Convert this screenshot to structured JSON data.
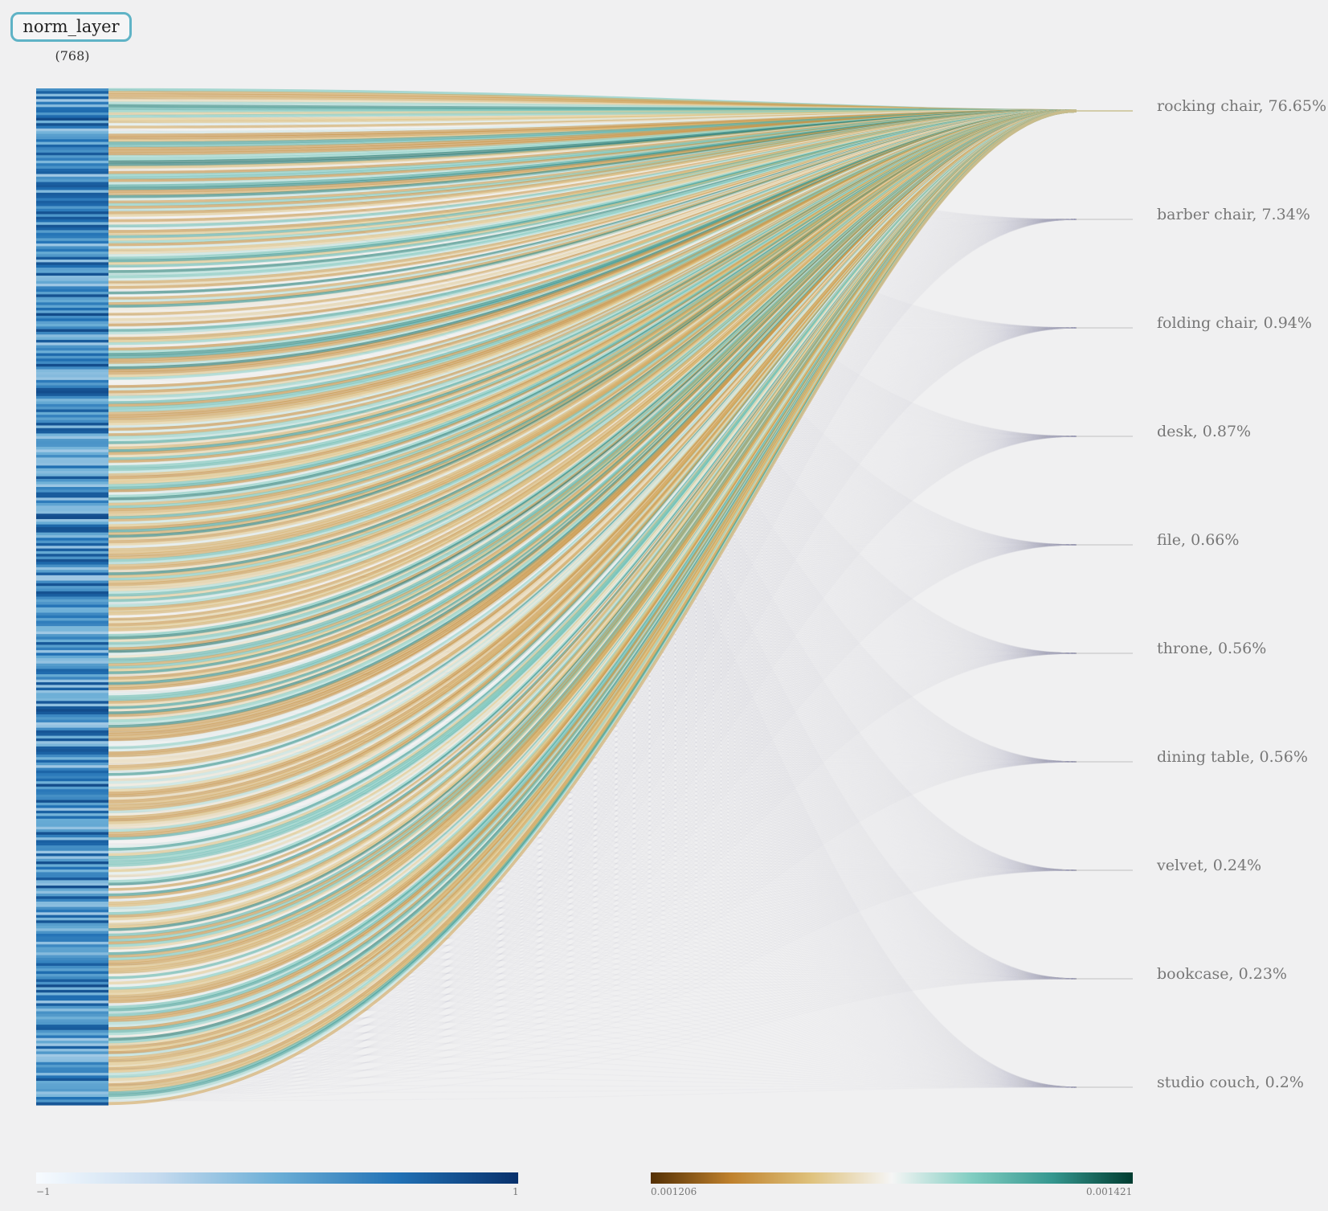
{
  "layer": {
    "name": "norm_layer",
    "dimension": "(768)",
    "neuron_count": 768
  },
  "classes": [
    {
      "label": "rocking chair, 76.65%",
      "probability": 76.65
    },
    {
      "label": "barber chair, 7.34%",
      "probability": 7.34
    },
    {
      "label": "folding chair, 0.94%",
      "probability": 0.94
    },
    {
      "label": "desk, 0.87%",
      "probability": 0.87
    },
    {
      "label": "file, 0.66%",
      "probability": 0.66
    },
    {
      "label": "throne, 0.56%",
      "probability": 0.56
    },
    {
      "label": "dining table, 0.56%",
      "probability": 0.56
    },
    {
      "label": "velvet, 0.24%",
      "probability": 0.24
    },
    {
      "label": "bookcase, 0.23%",
      "probability": 0.23
    },
    {
      "label": "studio couch, 0.2%",
      "probability": 0.2
    }
  ],
  "activation_scale": {
    "min_label": "−1",
    "max_label": "1",
    "colors": [
      "#f7fbff",
      "#c6dbef",
      "#6baed6",
      "#2171b5",
      "#08306b"
    ]
  },
  "weight_scale": {
    "min_label": "0.001206",
    "max_label": "0.001421",
    "colors": [
      "#543005",
      "#bf812d",
      "#dfc27d",
      "#f5f5f5",
      "#80cdc1",
      "#35978f",
      "#003c30"
    ]
  }
}
